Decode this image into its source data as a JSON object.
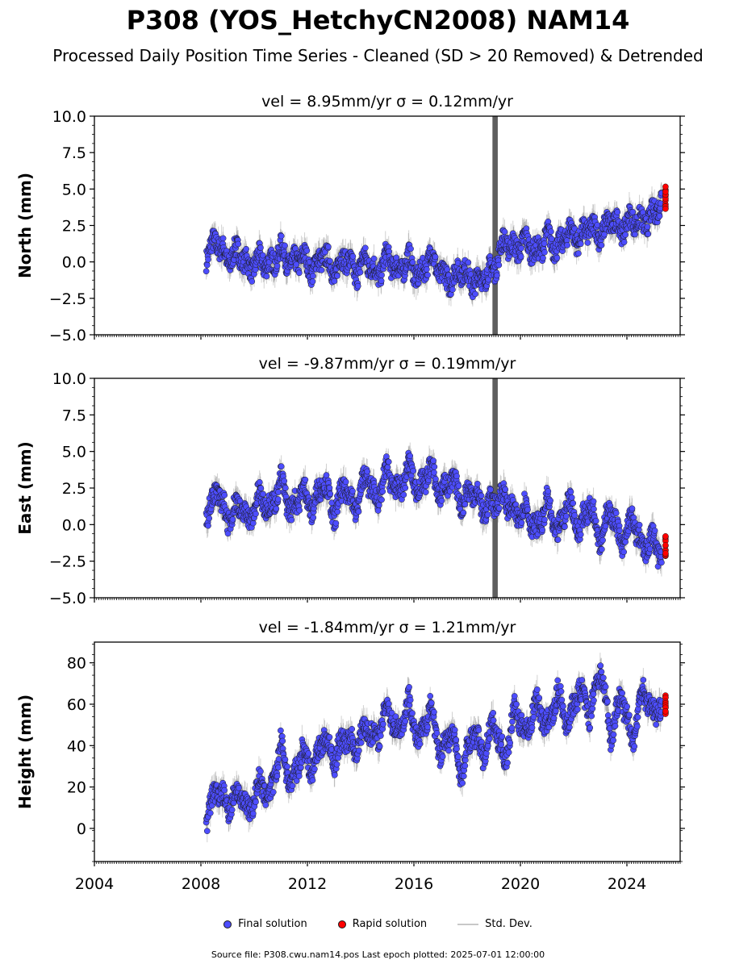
{
  "header": {
    "title": "P308 (YOS_HetchyCN2008) NAM14",
    "subtitle": "Processed Daily Position Time Series - Cleaned (SD > 20 Removed) & Detrended"
  },
  "legend": {
    "final": "Final solution",
    "rapid": "Rapid solution",
    "std": "Std. Dev."
  },
  "footer": "Source file: P308.cwu.nam14.pos  Last epoch plotted: 2025-07-01 12:00:00",
  "colors": {
    "final": "#4d4dff",
    "rapid": "#ff0000",
    "std": "#c8c8c8",
    "edge": "#1a1a1a"
  },
  "chart_data": [
    {
      "type": "scatter",
      "title": "vel = 8.95mm/yr   σ = 0.12mm/yr",
      "ylabel": "North (mm)",
      "xlim": [
        2004,
        2026
      ],
      "ylim": [
        -5,
        10
      ],
      "yticks": [
        -5.0,
        -2.5,
        0.0,
        2.5,
        5.0,
        7.5,
        10.0
      ],
      "ytick_labels": [
        "−5.0",
        "−2.5",
        "0.0",
        "2.5",
        "5.0",
        "7.5",
        "10.0"
      ],
      "xticks": [
        2004,
        2008,
        2012,
        2016,
        2020,
        2024
      ],
      "series": [
        {
          "name": "Final solution",
          "x": [
            2008.2,
            2008.6,
            2009.0,
            2009.4,
            2009.8,
            2010.2,
            2010.6,
            2011.0,
            2011.4,
            2011.8,
            2012.2,
            2012.6,
            2013.0,
            2013.4,
            2013.8,
            2014.2,
            2014.6,
            2015.0,
            2015.4,
            2015.8,
            2016.2,
            2016.6,
            2017.0,
            2017.4,
            2017.8,
            2018.2,
            2018.6,
            2019.0,
            2019.4,
            2019.8,
            2020.2,
            2020.6,
            2021.0,
            2021.4,
            2021.8,
            2022.2,
            2022.6,
            2023.0,
            2023.4,
            2023.8,
            2024.2,
            2024.6,
            2025.0,
            2025.3
          ],
          "y": [
            0.5,
            1.5,
            0.0,
            0.8,
            -0.5,
            0.2,
            -0.3,
            0.8,
            -0.2,
            0.4,
            -0.6,
            0.6,
            -0.8,
            0.5,
            -0.9,
            0.3,
            -1.0,
            0.4,
            -0.7,
            0.2,
            -1.2,
            0.5,
            -0.8,
            -1.3,
            -0.4,
            -1.5,
            -1.0,
            -0.5,
            1.5,
            0.8,
            1.5,
            0.5,
            1.8,
            0.8,
            2.2,
            1.5,
            2.5,
            1.8,
            2.9,
            2.2,
            3.0,
            2.6,
            3.2,
            4.4
          ]
        },
        {
          "name": "Rapid solution",
          "x": [
            2025.45
          ],
          "y": [
            4.4
          ]
        }
      ]
    },
    {
      "type": "scatter",
      "title": "vel = -9.87mm/yr   σ = 0.19mm/yr",
      "ylabel": "East (mm)",
      "xlim": [
        2004,
        2026
      ],
      "ylim": [
        -5,
        10
      ],
      "yticks": [
        -5.0,
        -2.5,
        0.0,
        2.5,
        5.0,
        7.5,
        10.0
      ],
      "ytick_labels": [
        "−5.0",
        "−2.5",
        "0.0",
        "2.5",
        "5.0",
        "7.5",
        "10.0"
      ],
      "xticks": [
        2004,
        2008,
        2012,
        2016,
        2020,
        2024
      ],
      "series": [
        {
          "name": "Final solution",
          "x": [
            2008.2,
            2008.6,
            2009.0,
            2009.4,
            2009.8,
            2010.2,
            2010.6,
            2011.0,
            2011.4,
            2011.8,
            2012.2,
            2012.6,
            2013.0,
            2013.4,
            2013.8,
            2014.2,
            2014.6,
            2015.0,
            2015.4,
            2015.8,
            2016.2,
            2016.6,
            2017.0,
            2017.4,
            2017.8,
            2018.2,
            2018.6,
            2019.0,
            2019.4,
            2019.8,
            2020.2,
            2020.6,
            2021.0,
            2021.4,
            2021.8,
            2022.2,
            2022.6,
            2023.0,
            2023.4,
            2023.8,
            2024.2,
            2024.6,
            2025.0,
            2025.3
          ],
          "y": [
            0.5,
            2.5,
            0.3,
            1.5,
            0.2,
            2.0,
            1.0,
            3.0,
            0.8,
            2.5,
            1.0,
            3.2,
            0.5,
            2.8,
            1.0,
            3.5,
            1.5,
            3.8,
            2.0,
            4.0,
            2.2,
            4.0,
            2.0,
            3.2,
            1.5,
            2.5,
            1.0,
            1.5,
            2.0,
            0.5,
            1.2,
            -0.5,
            1.5,
            -0.8,
            1.8,
            -0.5,
            1.5,
            -1.0,
            1.2,
            -1.5,
            0.5,
            -1.8,
            -0.8,
            -2.5
          ]
        },
        {
          "name": "Rapid solution",
          "x": [
            2025.45
          ],
          "y": [
            -1.5
          ]
        }
      ]
    },
    {
      "type": "scatter",
      "title": "vel = -1.84mm/yr   σ = 1.21mm/yr",
      "ylabel": "Height (mm)",
      "xlim": [
        2004,
        2026
      ],
      "ylim": [
        -16,
        90
      ],
      "yticks": [
        0,
        20,
        40,
        60,
        80
      ],
      "ytick_labels": [
        "0",
        "20",
        "40",
        "60",
        "80"
      ],
      "xticks": [
        2004,
        2008,
        2012,
        2016,
        2020,
        2024
      ],
      "xtick_labels": [
        "2004",
        "2008",
        "2012",
        "2016",
        "2020",
        "2024"
      ],
      "series": [
        {
          "name": "Final solution",
          "x": [
            2008.2,
            2008.6,
            2009.0,
            2009.4,
            2009.8,
            2010.2,
            2010.6,
            2011.0,
            2011.4,
            2011.8,
            2012.2,
            2012.6,
            2013.0,
            2013.4,
            2013.8,
            2014.2,
            2014.6,
            2015.0,
            2015.4,
            2015.8,
            2016.2,
            2016.6,
            2017.0,
            2017.4,
            2017.8,
            2018.2,
            2018.6,
            2019.0,
            2019.4,
            2019.8,
            2020.2,
            2020.6,
            2021.0,
            2021.4,
            2021.8,
            2022.2,
            2022.6,
            2023.0,
            2023.4,
            2023.8,
            2024.2,
            2024.6,
            2025.0,
            2025.3
          ],
          "y": [
            5,
            20,
            10,
            18,
            8,
            22,
            15,
            40,
            20,
            38,
            28,
            45,
            32,
            45,
            38,
            50,
            42,
            60,
            45,
            62,
            40,
            60,
            35,
            48,
            25,
            48,
            35,
            52,
            32,
            58,
            45,
            62,
            48,
            65,
            50,
            68,
            55,
            78,
            45,
            65,
            42,
            68,
            55,
            60
          ]
        },
        {
          "name": "Rapid solution",
          "x": [
            2025.45
          ],
          "y": [
            60
          ]
        }
      ]
    }
  ]
}
